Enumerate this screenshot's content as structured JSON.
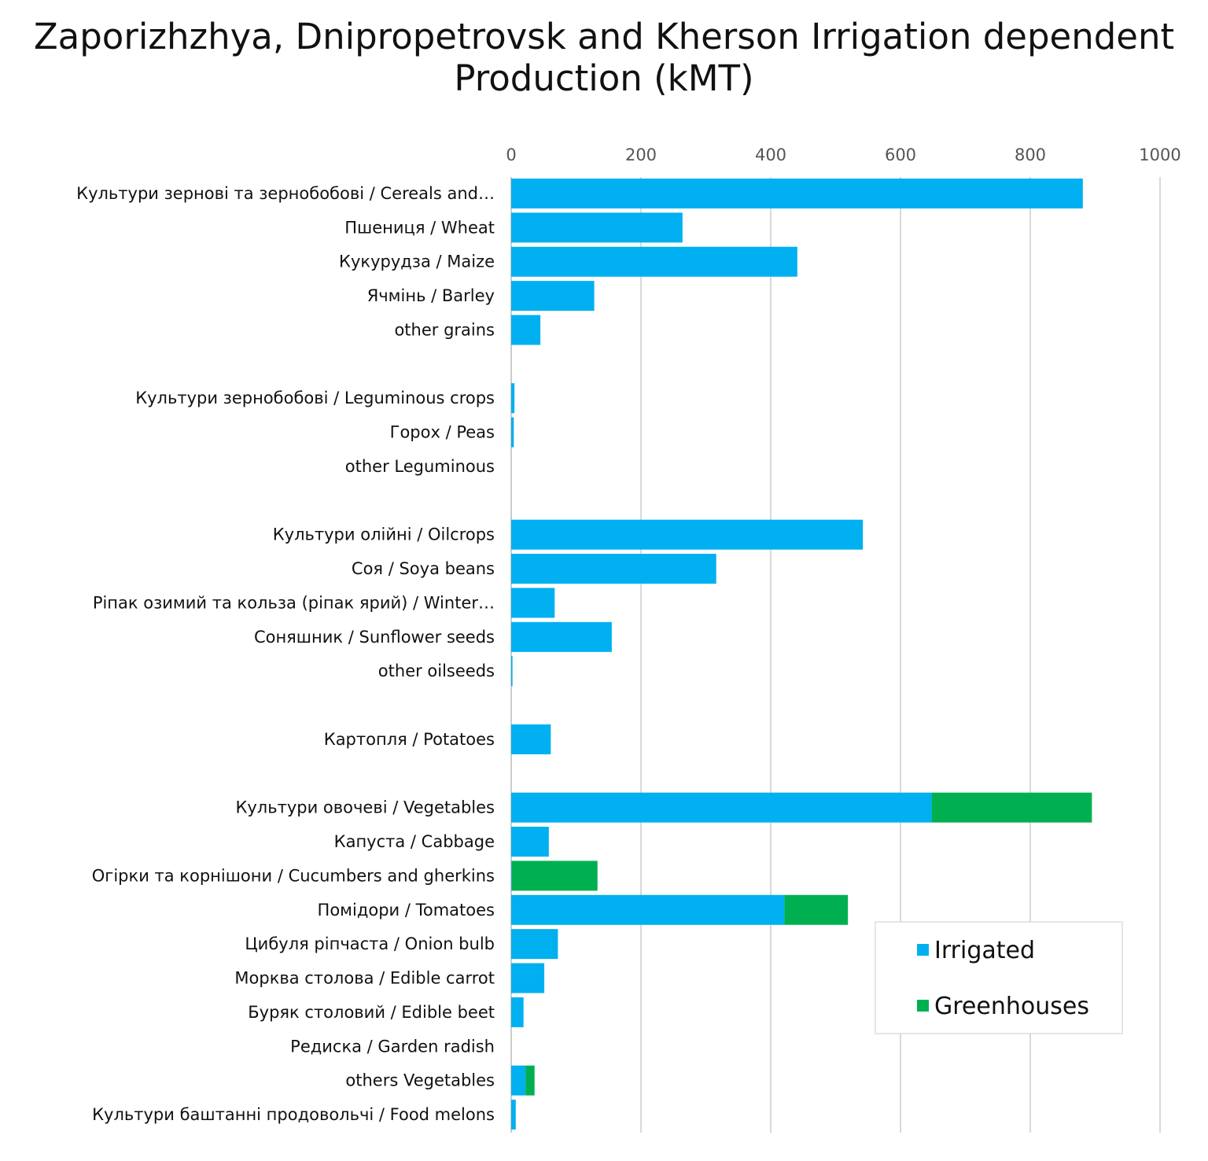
{
  "chart_data": {
    "type": "bar",
    "orientation": "horizontal",
    "stacked": true,
    "title": "Zaporizhzhya, Dnipropetrovsk and Kherson Irrigation dependent Production (kMT)",
    "xlabel": "",
    "ylabel": "",
    "xlim": [
      0,
      1000
    ],
    "xticks": [
      "0",
      "200",
      "400",
      "600",
      "800",
      "1000"
    ],
    "grid": true,
    "legend_position": "bottom-right",
    "categories": [
      "Культури зернові та зернобобові / Cereals and…",
      "Пшениця / Wheat",
      "Кукурудза  / Maize",
      "Ячмінь / Barley",
      "other grains",
      "",
      "Культури зернобобові / Leguminous crops",
      "Горох / Peas",
      "other Leguminous",
      "",
      "Культури олійні / Oilcrops",
      "Соя / Soya beans",
      "Ріпак озимий та кольза (ріпак ярий) / Winter…",
      "Соняшник / Sunflower seeds",
      "other oilseeds",
      "",
      "Картопля / Potatoes",
      "",
      "Культури овочеві / Vegetables ",
      "Капуста / Cabbage",
      "Огірки та корнішони / Cucumbers and gherkins",
      "Помідори / Tomatoes",
      "Цибуля ріпчаста / Onion bulb",
      "Морква столова / Edible carrot",
      "Буряк столовий / Edible beet",
      "Редиска / Garden radish",
      "others Vegetables ",
      "Культури баштанні продовольчі / Food melons"
    ],
    "series": [
      {
        "name": "Irrigated",
        "color": "#00B0F0",
        "values": [
          881,
          264,
          441,
          128,
          45,
          null,
          5,
          4,
          0,
          null,
          542,
          316,
          67,
          155,
          2,
          null,
          61,
          null,
          648,
          58,
          1,
          421,
          72,
          51,
          19,
          0,
          22,
          7
        ]
      },
      {
        "name": "Greenhouses",
        "color": "#00B050",
        "values": [
          0,
          0,
          0,
          0,
          0,
          null,
          0,
          0,
          0,
          null,
          0,
          0,
          0,
          0,
          0,
          null,
          0,
          null,
          247,
          0,
          132,
          98,
          0,
          0,
          0,
          0,
          14,
          0
        ]
      }
    ]
  }
}
